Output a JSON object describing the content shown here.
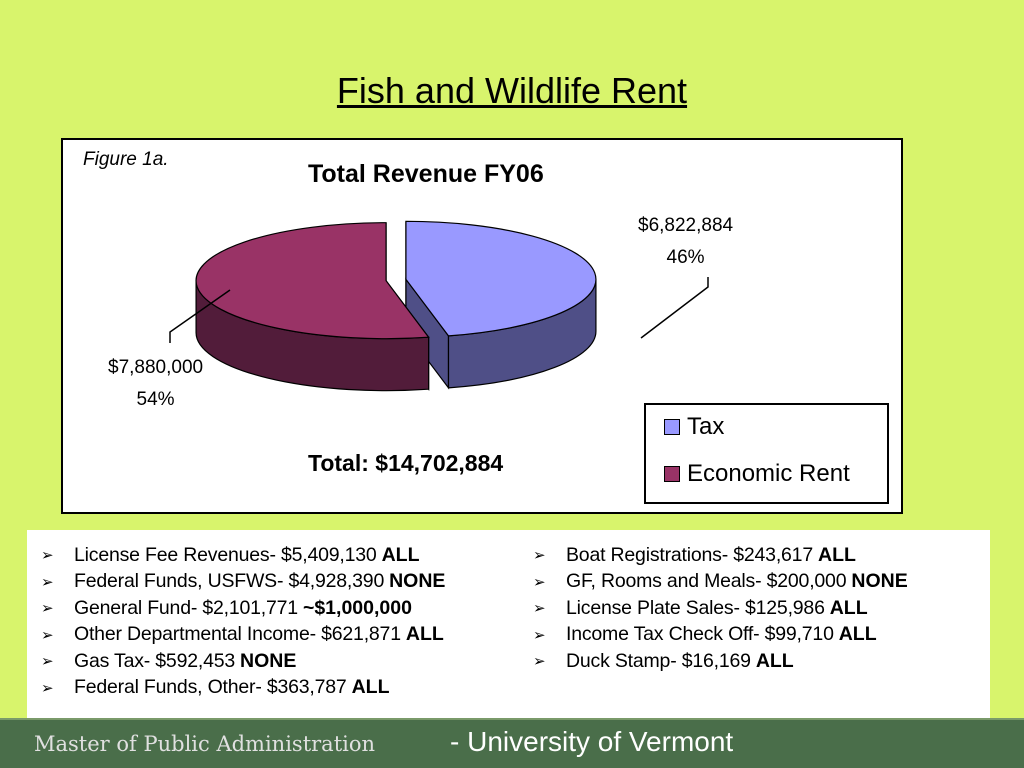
{
  "slide": {
    "title": "Fish and Wildlife Rent"
  },
  "chart_data": {
    "type": "pie",
    "figure_label": "Figure 1a.",
    "title": "Total Revenue FY06",
    "total_label": "Total: $14,702,884",
    "slices": [
      {
        "name": "Tax",
        "value": 6822884,
        "value_label": "$6,822,884",
        "percent_label": "46%",
        "percent": 46,
        "color": "#9999ff",
        "side_color": "#4f4f87"
      },
      {
        "name": "Economic Rent",
        "value": 7880000,
        "value_label": "$7,880,000",
        "percent_label": "54%",
        "percent": 54,
        "color": "#993366",
        "side_color": "#521c3a"
      }
    ],
    "legend_position": "bottom-right"
  },
  "bullets": {
    "left": [
      {
        "text": "License Fee Revenues- $5,409,130",
        "tag": "ALL"
      },
      {
        "text": "Federal Funds, USFWS- $4,928,390",
        "tag": "NONE"
      },
      {
        "text": "General Fund- $2,101,771",
        "tag": "~$1,000,000"
      },
      {
        "text": "Other Departmental Income- $621,871",
        "tag": "ALL"
      },
      {
        "text": "Gas Tax- $592,453",
        "tag": "NONE"
      },
      {
        "text": "Federal Funds, Other- $363,787",
        "tag": "ALL"
      }
    ],
    "right": [
      {
        "text": "Boat Registrations- $243,617",
        "tag": "ALL"
      },
      {
        "text": "GF, Rooms and Meals- $200,000",
        "tag": "NONE"
      },
      {
        "text": "License Plate Sales- $125,986",
        "tag": "ALL"
      },
      {
        "text": "Income Tax Check Off- $99,710",
        "tag": "ALL"
      },
      {
        "text": "Duck Stamp- $16,169",
        "tag": "ALL"
      }
    ],
    "arrow_glyph": "➢"
  },
  "footer": {
    "left": "Master of Public Administration",
    "right": "- University of Vermont"
  },
  "colors": {
    "background": "#d8f46c",
    "footer": "#4a6e4a"
  }
}
